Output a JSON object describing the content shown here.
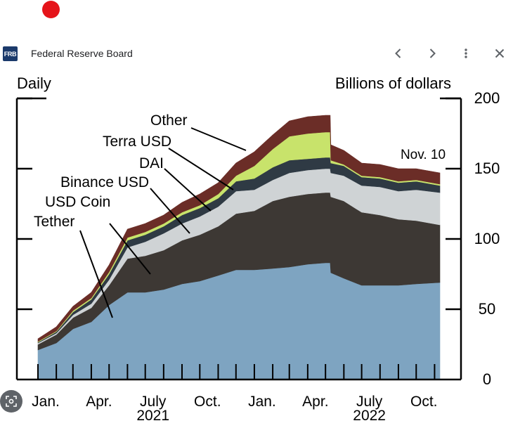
{
  "browser": {
    "logo_text": "FRB",
    "site_name": "Federal Reserve Board",
    "record_dot_color": "#e5141a"
  },
  "icons": {
    "back": "chevron-left-icon",
    "forward": "chevron-right-icon",
    "menu": "more-vert-icon",
    "close": "close-icon",
    "lens": "image-search-icon"
  },
  "chart_data": {
    "type": "area",
    "stacked": true,
    "left_label": "Daily",
    "right_label": "Billions of dollars",
    "end_label": "Nov. 10",
    "ylim": [
      0,
      200
    ],
    "y_ticks": [
      0,
      50,
      100,
      150,
      200
    ],
    "x_range": [
      "2021-01-01",
      "2022-11-10"
    ],
    "month_ticks": [
      "Jan.",
      "Apr.",
      "July",
      "Oct.",
      "Jan.",
      "Apr.",
      "July",
      "Oct."
    ],
    "year_labels": [
      "2021",
      "2022"
    ],
    "dates": [
      "2021-01-01",
      "2021-02-01",
      "2021-03-01",
      "2021-04-01",
      "2021-05-01",
      "2021-06-01",
      "2021-07-01",
      "2021-08-01",
      "2021-09-01",
      "2021-10-01",
      "2021-11-01",
      "2021-12-01",
      "2022-01-01",
      "2022-02-01",
      "2022-03-01",
      "2022-04-01",
      "2022-05-01",
      "2022-05-09",
      "2022-05-10",
      "2022-06-01",
      "2022-07-01",
      "2022-08-01",
      "2022-09-01",
      "2022-10-01",
      "2022-11-10"
    ],
    "series": [
      {
        "name": "Tether",
        "color": "#7ea4c1",
        "values": [
          21,
          26,
          36,
          41,
          53,
          62,
          62,
          64,
          68,
          70,
          74,
          78,
          78,
          79,
          80,
          82,
          83,
          83,
          76,
          72,
          67,
          67,
          67,
          68,
          69
        ]
      },
      {
        "name": "USD Coin",
        "color": "#3d3834",
        "values": [
          4,
          6,
          8,
          10,
          14,
          24,
          26,
          28,
          31,
          33,
          35,
          40,
          42,
          48,
          50,
          50,
          50,
          50,
          54,
          55,
          52,
          50,
          47,
          45,
          41
        ]
      },
      {
        "name": "Binance USD",
        "color": "#cfd3d5",
        "values": [
          1,
          1,
          2,
          3,
          4,
          8,
          10,
          12,
          12,
          13,
          14,
          16,
          15,
          15,
          17,
          17,
          17,
          17,
          17,
          18,
          19,
          20,
          20,
          22,
          23
        ]
      },
      {
        "name": "DAI",
        "color": "#2f3a44",
        "values": [
          0.5,
          1,
          2,
          3,
          4,
          5,
          5,
          5,
          6,
          6,
          6,
          7,
          8,
          9,
          9,
          8,
          8,
          8,
          7,
          7,
          6,
          6,
          6,
          6,
          5
        ]
      },
      {
        "name": "Terra USD",
        "color": "#c8e36b",
        "values": [
          0.5,
          0.5,
          1,
          1,
          1.5,
          2,
          2,
          2,
          2,
          2,
          3,
          4,
          9,
          13,
          17,
          18,
          18,
          18,
          2,
          1,
          1,
          1,
          1,
          1,
          1
        ]
      },
      {
        "name": "Other",
        "color": "#6b2d27",
        "values": [
          2,
          3,
          3,
          4,
          5,
          6,
          6,
          6,
          7,
          8,
          8,
          9,
          10,
          10,
          11,
          12,
          12,
          12,
          11,
          10,
          9,
          9,
          9,
          8,
          8
        ]
      }
    ]
  }
}
